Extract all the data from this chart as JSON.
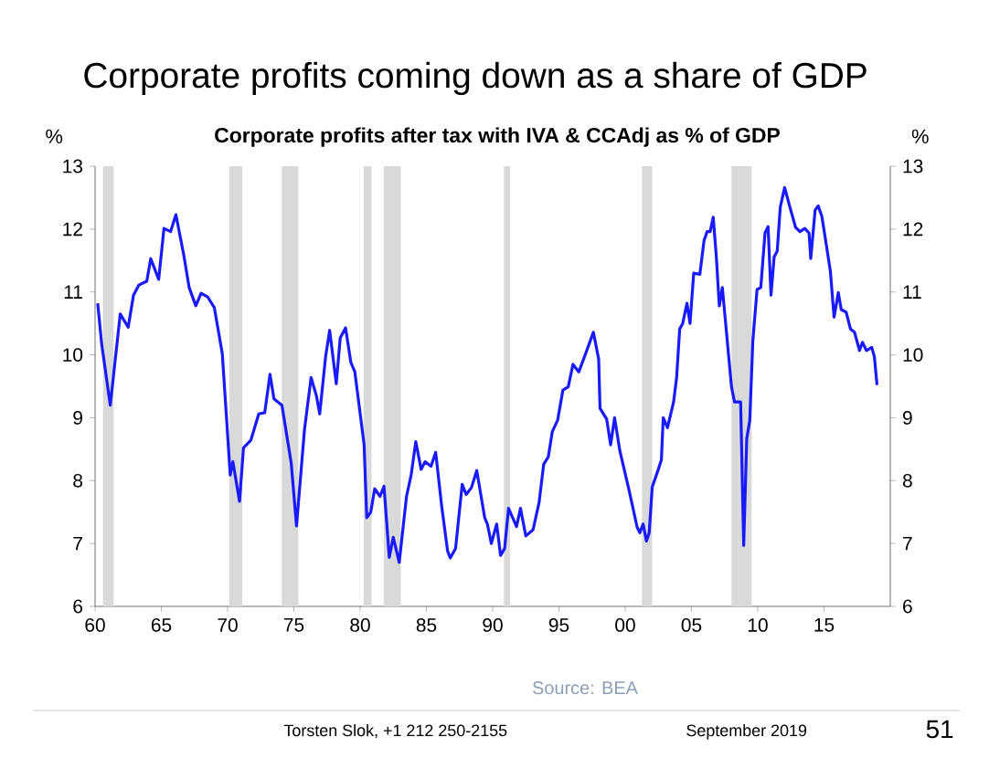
{
  "chart_data": {
    "type": "line",
    "title": "Corporate profits coming down as a share of GDP",
    "subtitle": "Corporate profits after tax with IVA & CCAdj as  % of GDP",
    "ylabel": "%",
    "y2label": "%",
    "x": [
      1960.2,
      1960.5,
      1961.15,
      1961.5,
      1961.9,
      1962.5,
      1962.9,
      1963.3,
      1963.9,
      1964.2,
      1964.8,
      1965.2,
      1965.7,
      1966.1,
      1966.7,
      1967.1,
      1967.6,
      1968.0,
      1968.5,
      1969.0,
      1969.6,
      1970.2,
      1970.4,
      1970.9,
      1971.2,
      1971.75,
      1972.35,
      1972.8,
      1973.2,
      1973.5,
      1974.1,
      1974.8,
      1975.2,
      1975.8,
      1976.3,
      1976.7,
      1976.95,
      1977.4,
      1977.7,
      1978.2,
      1978.5,
      1978.9,
      1979.3,
      1979.6,
      1980.3,
      1980.5,
      1980.8,
      1981.1,
      1981.5,
      1981.8,
      1982.2,
      1982.5,
      1982.95,
      1983.5,
      1983.85,
      1984.2,
      1984.6,
      1984.9,
      1985.35,
      1985.7,
      1986.15,
      1986.6,
      1986.8,
      1987.2,
      1987.7,
      1988.0,
      1988.4,
      1988.8,
      1989.4,
      1989.6,
      1989.9,
      1990.3,
      1990.6,
      1990.9,
      1991.2,
      1991.8,
      1992.1,
      1992.5,
      1993.05,
      1993.5,
      1993.85,
      1994.2,
      1994.5,
      1994.9,
      1995.3,
      1995.7,
      1996.06,
      1996.5,
      1996.98,
      1997.6,
      1998.0,
      1998.1,
      1998.6,
      1998.9,
      1999.2,
      1999.6,
      2000.3,
      2000.9,
      2001.1,
      2001.35,
      2001.6,
      2001.81,
      2002.04,
      2002.5,
      2002.73,
      2002.87,
      2003.19,
      2003.65,
      2003.88,
      2004.11,
      2004.34,
      2004.66,
      2004.89,
      2005.17,
      2005.63,
      2005.95,
      2006.18,
      2006.41,
      2006.64,
      2006.87,
      2007.1,
      2007.33,
      2008.02,
      2008.25,
      2008.71,
      2008.94,
      2009.17,
      2009.4,
      2009.63,
      2009.95,
      2010.23,
      2010.55,
      2010.78,
      2011.0,
      2011.24,
      2011.47,
      2011.7,
      2012.03,
      2012.4,
      2012.85,
      2013.18,
      2013.55,
      2013.87,
      2014.0,
      2014.33,
      2014.56,
      2014.84,
      2015.16,
      2015.48,
      2015.76,
      2016.08,
      2016.3,
      2016.67,
      2017.0,
      2017.3,
      2017.68,
      2017.9,
      2018.2,
      2018.6,
      2018.8,
      2019.0
    ],
    "series": [
      {
        "color": "#1a1aff",
        "values": [
          10.82,
          10.17,
          9.2,
          9.88,
          10.65,
          10.44,
          10.95,
          11.11,
          11.17,
          11.53,
          11.2,
          12.01,
          11.96,
          12.23,
          11.58,
          11.07,
          10.78,
          10.98,
          10.92,
          10.75,
          10.02,
          8.09,
          8.3,
          7.67,
          8.52,
          8.64,
          9.06,
          9.08,
          9.69,
          9.3,
          9.2,
          8.28,
          7.28,
          8.81,
          9.64,
          9.35,
          9.06,
          9.98,
          10.39,
          9.54,
          10.27,
          10.43,
          9.88,
          9.73,
          8.57,
          7.41,
          7.5,
          7.87,
          7.75,
          7.91,
          6.78,
          7.1,
          6.7,
          7.75,
          8.09,
          8.62,
          8.18,
          8.3,
          8.23,
          8.45,
          7.6,
          6.88,
          6.77,
          6.92,
          7.94,
          7.78,
          7.89,
          8.16,
          7.41,
          7.31,
          7.0,
          7.31,
          6.81,
          6.92,
          7.56,
          7.27,
          7.56,
          7.12,
          7.22,
          7.65,
          8.26,
          8.38,
          8.78,
          8.96,
          9.44,
          9.49,
          9.85,
          9.73,
          10.0,
          10.36,
          9.93,
          9.15,
          8.98,
          8.57,
          9.0,
          8.47,
          7.84,
          7.26,
          7.17,
          7.31,
          7.04,
          7.17,
          7.9,
          8.18,
          8.33,
          9.0,
          8.84,
          9.25,
          9.64,
          10.41,
          10.5,
          10.82,
          10.5,
          11.3,
          11.28,
          11.82,
          11.96,
          11.96,
          12.19,
          11.58,
          10.78,
          11.07,
          9.49,
          9.25,
          9.25,
          6.97,
          8.67,
          8.96,
          10.22,
          11.04,
          11.07,
          11.94,
          12.04,
          10.95,
          11.56,
          11.65,
          12.35,
          12.66,
          12.37,
          12.03,
          11.96,
          12.01,
          11.94,
          11.53,
          12.3,
          12.37,
          12.2,
          11.77,
          11.33,
          10.6,
          10.99,
          10.72,
          10.68,
          10.41,
          10.36,
          10.07,
          10.2,
          10.07,
          10.12,
          9.97,
          9.52
        ]
      }
    ],
    "xlim": [
      1960,
      2020
    ],
    "xticks": [
      {
        "value": 1960,
        "label": "60"
      },
      {
        "value": 1965,
        "label": "65"
      },
      {
        "value": 1970,
        "label": "70"
      },
      {
        "value": 1975,
        "label": "75"
      },
      {
        "value": 1980,
        "label": "80"
      },
      {
        "value": 1985,
        "label": "85"
      },
      {
        "value": 1990,
        "label": "90"
      },
      {
        "value": 1995,
        "label": "95"
      },
      {
        "value": 2000,
        "label": "00"
      },
      {
        "value": 2005,
        "label": "05"
      },
      {
        "value": 2010,
        "label": "10"
      },
      {
        "value": 2015,
        "label": "15"
      }
    ],
    "ylim": [
      6,
      13
    ],
    "yticks": [
      6,
      7,
      8,
      9,
      10,
      11,
      12,
      13
    ],
    "y2lim": [
      6,
      13
    ],
    "y2ticks": [
      6,
      7,
      8,
      9,
      10,
      11,
      12,
      13
    ],
    "bands": [
      {
        "axis": "x",
        "from": 1960.6,
        "to": 1961.4,
        "color": "#d9d9d9"
      },
      {
        "axis": "x",
        "from": 1970.13,
        "to": 1971.1,
        "color": "#d9d9d9"
      },
      {
        "axis": "x",
        "from": 1974.09,
        "to": 1975.34,
        "color": "#d9d9d9"
      },
      {
        "axis": "x",
        "from": 1980.26,
        "to": 1980.86,
        "color": "#d9d9d9"
      },
      {
        "axis": "x",
        "from": 1981.78,
        "to": 1983.07,
        "color": "#d9d9d9"
      },
      {
        "axis": "x",
        "from": 1990.85,
        "to": 1991.31,
        "color": "#d9d9d9"
      },
      {
        "axis": "x",
        "from": 2001.26,
        "to": 2002.04,
        "color": "#d9d9d9"
      },
      {
        "axis": "x",
        "from": 2008.02,
        "to": 2009.54,
        "color": "#d9d9d9"
      }
    ],
    "annotations": [
      "Source:  BEA",
      "Torsten Slok,  +1 212 250-2155",
      "September 2019",
      "51"
    ],
    "grid": false,
    "marker": "none",
    "line_style": "solid"
  }
}
